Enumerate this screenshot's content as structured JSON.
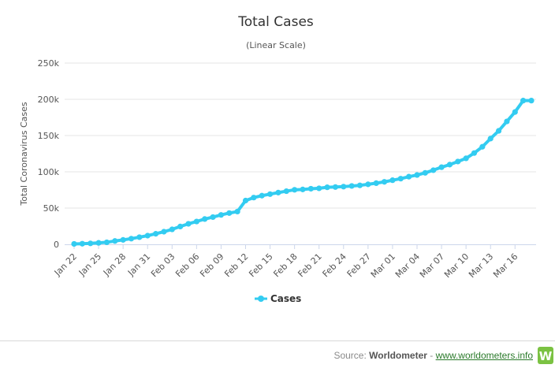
{
  "chart_data": {
    "type": "line",
    "title": "Total Cases",
    "subtitle": "(Linear Scale)",
    "ylabel": "Total Coronavirus Cases",
    "ylim": [
      0,
      250000
    ],
    "yticks": [
      0,
      50000,
      100000,
      150000,
      200000,
      250000
    ],
    "ytick_labels": [
      "0",
      "50k",
      "100k",
      "150k",
      "200k",
      "250k"
    ],
    "x": [
      "Jan 22",
      "Jan 23",
      "Jan 24",
      "Jan 25",
      "Jan 26",
      "Jan 27",
      "Jan 28",
      "Jan 29",
      "Jan 30",
      "Jan 31",
      "Feb 01",
      "Feb 02",
      "Feb 03",
      "Feb 04",
      "Feb 05",
      "Feb 06",
      "Feb 07",
      "Feb 08",
      "Feb 09",
      "Feb 10",
      "Feb 11",
      "Feb 12",
      "Feb 13",
      "Feb 14",
      "Feb 15",
      "Feb 16",
      "Feb 17",
      "Feb 18",
      "Feb 19",
      "Feb 20",
      "Feb 21",
      "Feb 22",
      "Feb 23",
      "Feb 24",
      "Feb 25",
      "Feb 26",
      "Feb 27",
      "Feb 28",
      "Feb 29",
      "Mar 01",
      "Mar 02",
      "Mar 03",
      "Mar 04",
      "Mar 05",
      "Mar 06",
      "Mar 07",
      "Mar 08",
      "Mar 09",
      "Mar 10",
      "Mar 11",
      "Mar 12",
      "Mar 13",
      "Mar 14",
      "Mar 15",
      "Mar 16",
      "Mar 17",
      "Mar 18"
    ],
    "xtick_labels": [
      "Jan 22",
      "Jan 25",
      "Jan 28",
      "Jan 31",
      "Feb 03",
      "Feb 06",
      "Feb 09",
      "Feb 12",
      "Feb 15",
      "Feb 18",
      "Feb 21",
      "Feb 24",
      "Feb 27",
      "Mar 01",
      "Mar 04",
      "Mar 07",
      "Mar 10",
      "Mar 13",
      "Mar 16"
    ],
    "series": [
      {
        "name": "Cases",
        "color": "#33ccf1",
        "values": [
          580,
          845,
          1320,
          2015,
          2800,
          4600,
          6100,
          7820,
          9830,
          11950,
          14550,
          17390,
          20630,
          24550,
          28280,
          31480,
          34890,
          37560,
          40550,
          43100,
          45150,
          60330,
          64450,
          67120,
          69250,
          71330,
          73330,
          75180,
          75700,
          76690,
          77260,
          78630,
          79010,
          79550,
          80480,
          81300,
          82750,
          84350,
          86160,
          88410,
          90540,
          93320,
          95620,
          98600,
          102250,
          106350,
          109920,
          114190,
          118580,
          125900,
          134500,
          145800,
          156500,
          169500,
          182500,
          198200,
          198200
        ]
      }
    ],
    "legend": {
      "position": "bottom-center",
      "label": "Cases"
    },
    "grid": true
  },
  "footer": {
    "source_prefix": "Source: ",
    "source_brand": "Worldometer",
    "separator": " - ",
    "link_text": "www.worldometers.info",
    "logo_letter": "W"
  }
}
